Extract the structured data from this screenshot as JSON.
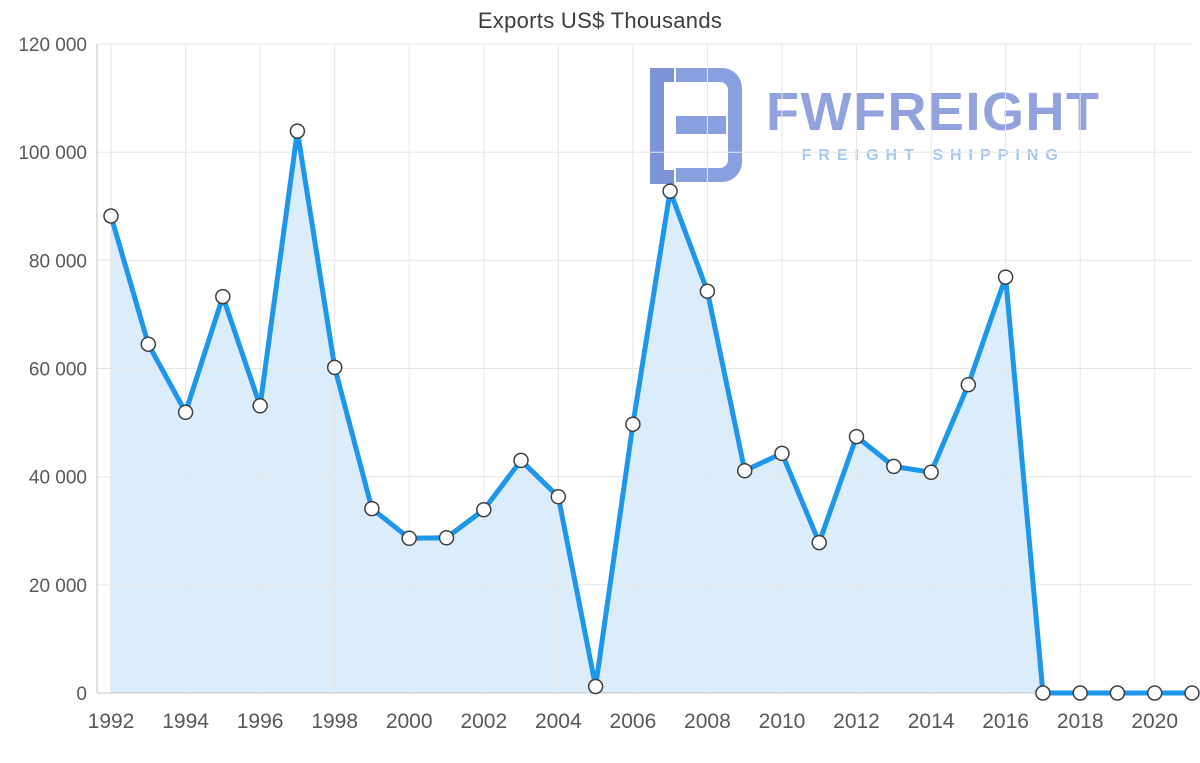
{
  "chart_data": {
    "type": "area",
    "title": "Exports US$ Thousands",
    "x": [
      1992,
      1993,
      1994,
      1995,
      1996,
      1997,
      1998,
      1999,
      2000,
      2001,
      2002,
      2003,
      2004,
      2005,
      2006,
      2007,
      2008,
      2009,
      2010,
      2011,
      2012,
      2013,
      2014,
      2015,
      2016,
      2017,
      2018,
      2019,
      2020,
      2021
    ],
    "values": [
      88200,
      64500,
      51900,
      73300,
      53100,
      103900,
      60200,
      34100,
      28600,
      28700,
      33900,
      43000,
      36300,
      1200,
      49700,
      92800,
      74300,
      41100,
      44300,
      27800,
      47400,
      41900,
      40800,
      57000,
      76900,
      0,
      0,
      0,
      0,
      0
    ],
    "ylim": [
      0,
      120000
    ],
    "ytick_step": 20000,
    "ytick_labels": [
      "0",
      "20 000",
      "40 000",
      "60 000",
      "80 000",
      "100 000",
      "120 000"
    ],
    "xticks": [
      1992,
      1994,
      1996,
      1998,
      2000,
      2002,
      2004,
      2006,
      2008,
      2010,
      2012,
      2014,
      2016,
      2018,
      2020
    ],
    "grid": true,
    "legend": "none",
    "colors": {
      "line": "#1E96EC",
      "fill": "#DBECFB",
      "marker_fill": "#FFFFFF",
      "marker_stroke": "#3F3F3F",
      "grid": "#E6E6E6",
      "axis": "#C4C4C4",
      "tick_text": "#595959",
      "title_text": "#3D3D3D"
    }
  },
  "watermark": {
    "brand": "FWFREIGHT",
    "tagline": "FREIGHT SHIPPING",
    "brand_color": "#93A1DC",
    "tagline_color": "#A6C8EC",
    "logo_color_left": "#7E92D6",
    "logo_color_right": "#8AA0DE",
    "logo_name": "fwfreight-logo-icon"
  }
}
